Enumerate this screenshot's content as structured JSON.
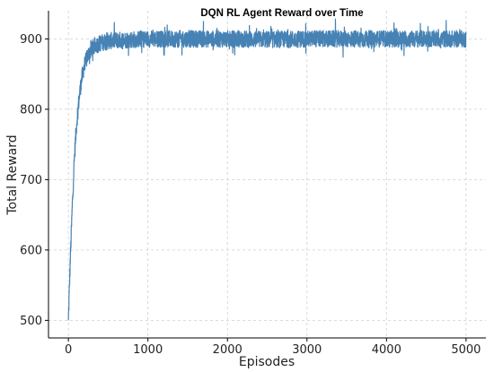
{
  "chart_data": {
    "type": "line",
    "title": "DQN RL Agent Reward over Time",
    "xlabel": "Episodes",
    "ylabel": "Total Reward",
    "xlim": [
      -250,
      5250
    ],
    "ylim": [
      475,
      940
    ],
    "xticks": [
      0,
      1000,
      2000,
      3000,
      4000,
      5000
    ],
    "yticks": [
      500,
      600,
      700,
      800,
      900
    ],
    "grid": true,
    "series": [
      {
        "color": "#4682b4",
        "x": [
          0,
          25,
          50,
          75,
          100,
          125,
          150,
          175,
          200,
          250,
          300,
          350,
          400,
          500,
          600,
          800,
          1000,
          1500,
          2000,
          2500,
          3000,
          3500,
          4000,
          4500,
          5000
        ],
        "y": [
          500,
          590,
          665,
          730,
          775,
          805,
          830,
          848,
          862,
          878,
          886,
          891,
          894,
          897,
          898,
          899,
          900,
          900,
          900,
          899,
          900,
          900,
          900,
          900,
          900
        ],
        "noise_amplitude": 12
      }
    ]
  }
}
